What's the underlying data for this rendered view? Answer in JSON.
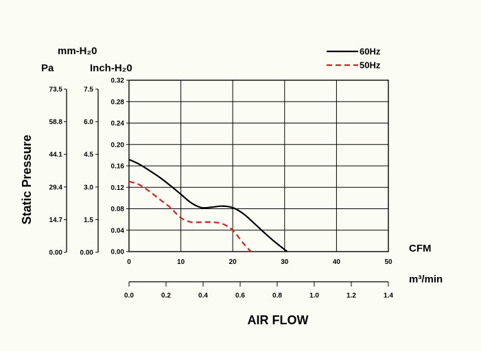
{
  "chart_data": {
    "type": "line",
    "xlabel": "AIR FLOW",
    "ylabel": "Static Pressure",
    "x_unit_primary": "CFM",
    "x_unit_secondary": "m³/min",
    "x_ticks_cfm": [
      "0",
      "10",
      "20",
      "30",
      "40",
      "50"
    ],
    "x_ticks_m3min": [
      "0.0",
      "0.2",
      "0.4",
      "0.6",
      "0.8",
      "1.0",
      "1.2",
      "1.4"
    ],
    "y_unit_pa": "Pa",
    "y_unit_mmh2o": "mm-H₂0",
    "y_unit_inch": "Inch-H₂0",
    "y_ticks_inch": [
      "0.00",
      "0.04",
      "0.08",
      "0.12",
      "0.16",
      "0.20",
      "0.24",
      "0.28",
      "0.32"
    ],
    "y_ticks_pa": [
      "0.00",
      "14.7",
      "29.4",
      "44.1",
      "58.8",
      "73.5"
    ],
    "y_ticks_mmh2o": [
      "0.00",
      "1.5",
      "3.0",
      "4.5",
      "6.0",
      "7.5"
    ],
    "xlim": [
      0,
      50
    ],
    "ylim": [
      0,
      0.32
    ],
    "grid": true,
    "legend_position": "top-right",
    "series": [
      {
        "name": "60Hz",
        "color": "#000000",
        "dash": "solid",
        "x": [
          0,
          2,
          4,
          6,
          8,
          10,
          12,
          14,
          16,
          18,
          20,
          22,
          24,
          26,
          28,
          30.5
        ],
        "y": [
          0.172,
          0.163,
          0.151,
          0.138,
          0.123,
          0.107,
          0.091,
          0.082,
          0.083,
          0.085,
          0.082,
          0.071,
          0.054,
          0.036,
          0.019,
          0.0
        ]
      },
      {
        "name": "50Hz",
        "color": "#e01b1b",
        "dash": "dashed",
        "x": [
          0,
          2,
          4,
          6,
          8,
          10,
          12,
          14,
          16,
          18,
          20,
          22,
          23.5
        ],
        "y": [
          0.131,
          0.125,
          0.112,
          0.097,
          0.082,
          0.063,
          0.055,
          0.055,
          0.055,
          0.052,
          0.04,
          0.016,
          0.0
        ]
      }
    ]
  }
}
